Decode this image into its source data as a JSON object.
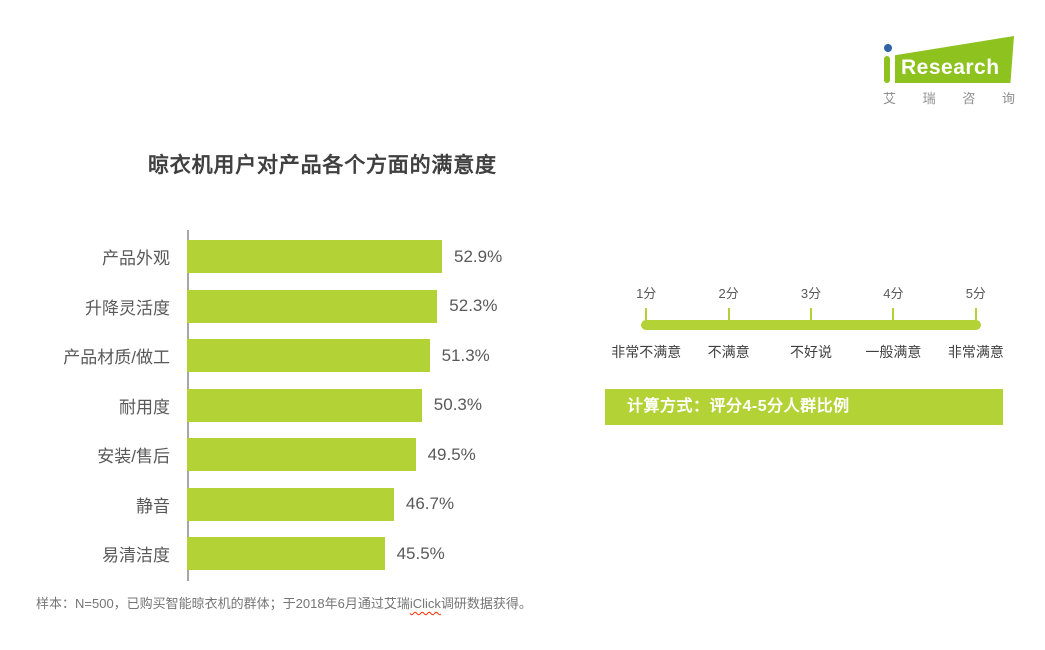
{
  "logo": {
    "brand_text": "Research",
    "caption": [
      "艾",
      "瑞",
      "咨",
      "询"
    ],
    "brand_green": "#8DC21F",
    "dot_blue": "#2F63A7"
  },
  "chart_data": {
    "type": "bar",
    "orientation": "horizontal",
    "title": "晾衣机用户对产品各个方面的满意度",
    "categories": [
      "产品外观",
      "升降灵活度",
      "产品材质/做工",
      "耐用度",
      "安装/售后",
      "静音",
      "易清洁度"
    ],
    "values": [
      52.9,
      52.3,
      51.3,
      50.3,
      49.5,
      46.7,
      45.5
    ],
    "value_labels": [
      "52.9%",
      "52.3%",
      "51.3%",
      "50.3%",
      "49.5%",
      "46.7%",
      "45.5%"
    ],
    "xlim": [
      20,
      60
    ],
    "xlabel": "",
    "ylabel": "",
    "grid": false,
    "legend": "none",
    "bar_color": "#B2D235"
  },
  "score_scale": {
    "scores": [
      "1分",
      "2分",
      "3分",
      "4分",
      "5分"
    ],
    "meanings": [
      "非常不满意",
      "不满意",
      "不好说",
      "一般满意",
      "非常满意"
    ],
    "bar_color": "#B2D235"
  },
  "method_box": {
    "text": "计算方式：评分4-5分人群比例",
    "bg_color": "#B2D235"
  },
  "footnote": {
    "before": "样本：N=500，已购买智能晾衣机的群体；于2018年6月通过艾瑞",
    "misspelled": "iClick",
    "after": "调研数据获得。"
  }
}
